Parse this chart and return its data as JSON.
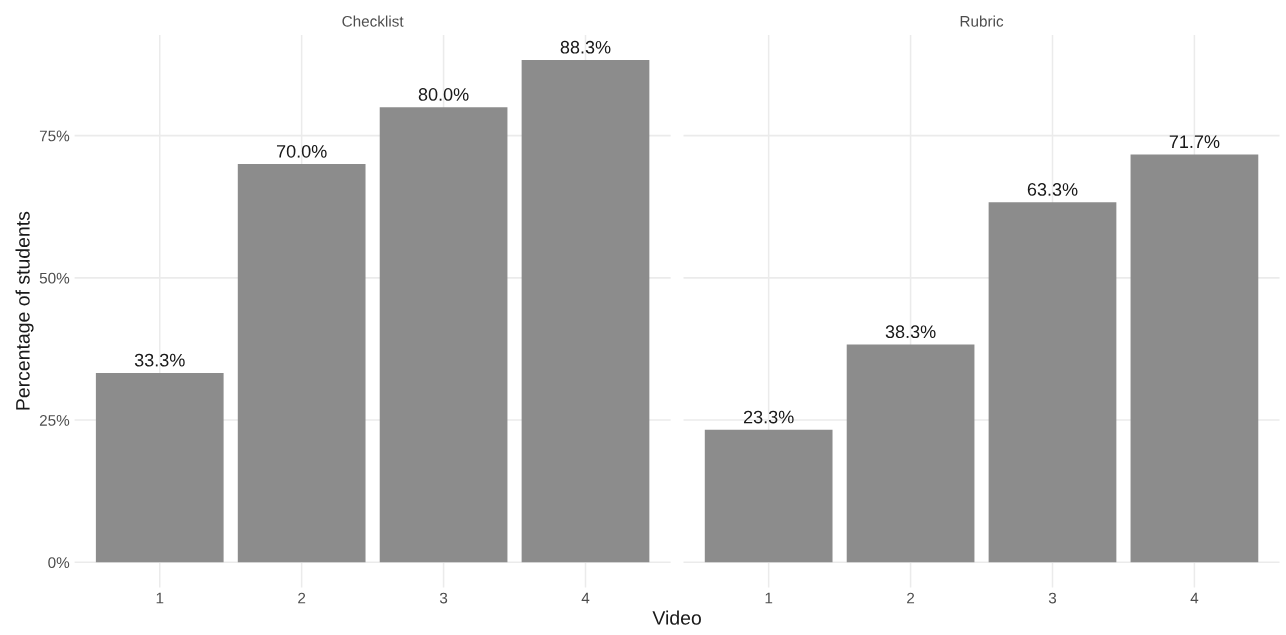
{
  "chart_data": [
    {
      "type": "bar",
      "title": "Checklist",
      "xlabel": "Video",
      "ylabel": "Percentage of students",
      "categories": [
        "1",
        "2",
        "3",
        "4"
      ],
      "values": [
        33.3,
        70.0,
        80.0,
        88.3
      ],
      "color": "#8c8c8c",
      "value_labels": [
        "33.3%",
        "70.0%",
        "80.0%",
        "88.3%"
      ],
      "ylim": [
        -4.4,
        92.7
      ],
      "yticks": [
        {
          "value": 0,
          "label": "0%"
        },
        {
          "value": 25,
          "label": "25%"
        },
        {
          "value": 50,
          "label": "50%"
        },
        {
          "value": 75,
          "label": "75%"
        }
      ],
      "grid": true
    },
    {
      "type": "bar",
      "title": "Rubric",
      "categories": [
        "1",
        "2",
        "3",
        "4"
      ],
      "values": [
        23.3,
        38.3,
        63.3,
        71.7
      ],
      "color": "#8c8c8c",
      "value_labels": [
        "23.3%",
        "38.3%",
        "63.3%",
        "71.7%"
      ],
      "ylim": [
        -4.4,
        92.7
      ],
      "yticks": [
        0,
        25,
        50,
        75
      ],
      "grid": true,
      "tick_labels": "x"
    }
  ]
}
